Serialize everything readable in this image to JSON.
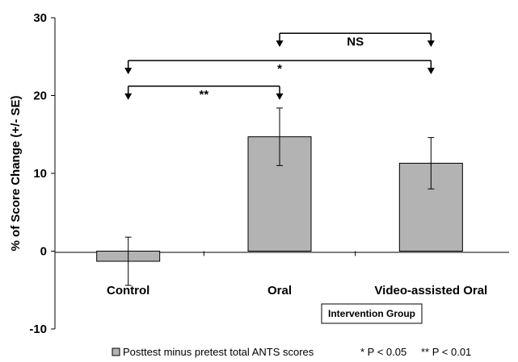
{
  "chart_data": {
    "type": "bar",
    "categories": [
      "Control",
      "Oral",
      "Video-assisted Oral"
    ],
    "series": [
      {
        "name": "Posttest minus pretest total ANTS scores",
        "values": [
          -1.3,
          14.7,
          11.3
        ],
        "error": [
          3.1,
          3.7,
          3.3
        ]
      }
    ],
    "ylabel": "% of Score Change (+/- SE)",
    "xlabel": "Intervention Group",
    "ylim": [
      -10,
      30
    ],
    "yticks": [
      "-10",
      "0",
      "10",
      "20",
      "30"
    ],
    "grid": false,
    "bar_color": "#b3b3b3",
    "legend": {
      "placement": "bottom",
      "notes": [
        "* P < 0.05",
        "** P < 0.01"
      ]
    },
    "significance": [
      {
        "from": "Control",
        "to": "Oral",
        "label": "**",
        "y": 21.2
      },
      {
        "from": "Control",
        "to": "Video-assisted Oral",
        "label": "*",
        "y": 24.5
      },
      {
        "from": "Oral",
        "to": "Video-assisted Oral",
        "label": "NS",
        "y": 28.0
      }
    ]
  }
}
